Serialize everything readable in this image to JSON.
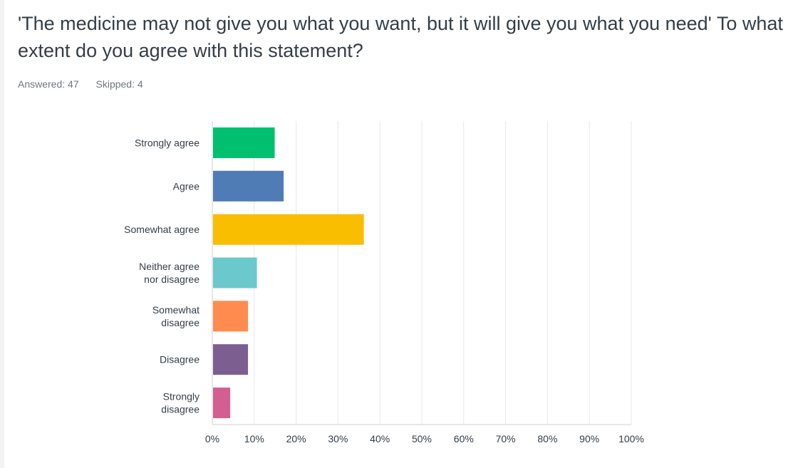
{
  "question": {
    "title": "'The medicine may not give you what you want, but it will give you what you need' To what extent do you agree with this statement?",
    "answered": "Answered: 47",
    "skipped": "Skipped: 4"
  },
  "chart_data": {
    "type": "bar",
    "orientation": "horizontal",
    "categories": [
      [
        "Strongly agree"
      ],
      [
        "Agree"
      ],
      [
        "Somewhat agree"
      ],
      [
        "Neither agree",
        "nor disagree"
      ],
      [
        "Somewhat",
        "disagree"
      ],
      [
        "Disagree"
      ],
      [
        "Strongly",
        "disagree"
      ]
    ],
    "values": [
      14.89,
      17.02,
      36.17,
      10.64,
      8.51,
      8.51,
      4.26
    ],
    "colors": [
      "#00bf6f",
      "#507cb6",
      "#f9be00",
      "#6bc8cd",
      "#ff8b4f",
      "#7d5e90",
      "#d25f90"
    ],
    "xlim": [
      0,
      100
    ],
    "xticks": [
      "0%",
      "10%",
      "20%",
      "30%",
      "40%",
      "50%",
      "60%",
      "70%",
      "80%",
      "90%",
      "100%"
    ],
    "grid": true,
    "title": "",
    "xlabel": "",
    "ylabel": ""
  }
}
